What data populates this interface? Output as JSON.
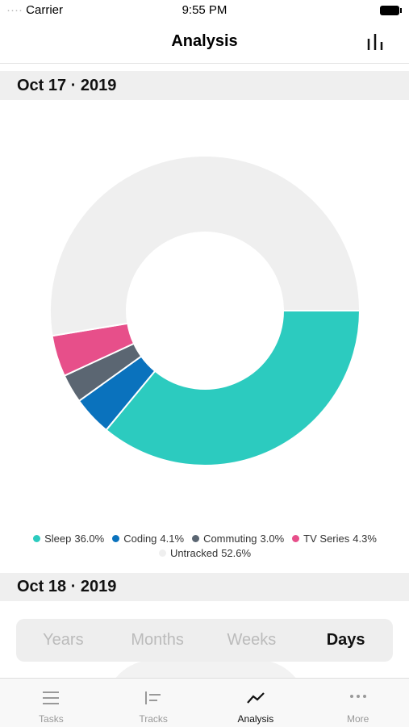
{
  "status_bar": {
    "carrier": "Carrier",
    "time": "9:55 PM"
  },
  "header": {
    "title": "Analysis"
  },
  "sections": [
    {
      "date": "Oct 17 · 2019"
    },
    {
      "date": "Oct 18 · 2019"
    }
  ],
  "chart_data": {
    "type": "donut",
    "categories": [
      "Sleep",
      "Coding",
      "Commuting",
      "TV Series",
      "Untracked"
    ],
    "values": [
      36.0,
      4.1,
      3.0,
      4.3,
      52.6
    ],
    "value_labels": [
      "36.0%",
      "4.1%",
      "3.0%",
      "4.3%",
      "52.6%"
    ],
    "colors": [
      "#2ccbbf",
      "#0a72bd",
      "#5b6672",
      "#e74f8a",
      "#efefef"
    ]
  },
  "segmented_control": {
    "options": [
      "Years",
      "Months",
      "Weeks",
      "Days"
    ],
    "selected": 3
  },
  "tab_bar": {
    "tabs": [
      "Tasks",
      "Tracks",
      "Analysis",
      "More"
    ],
    "selected": 2
  }
}
